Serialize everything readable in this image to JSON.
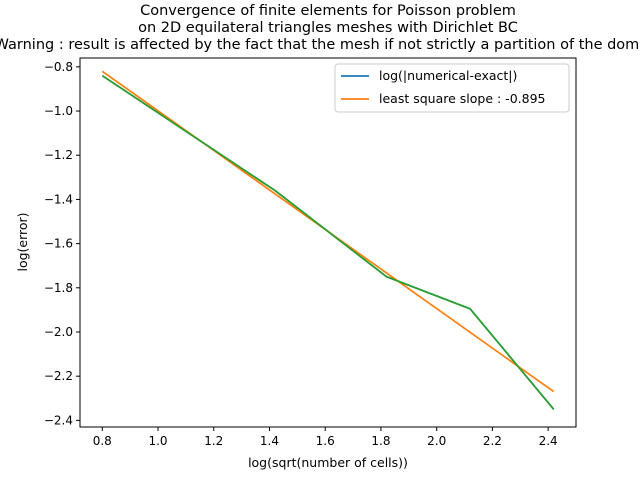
{
  "chart_data": {
    "type": "line",
    "title_lines": [
      "Convergence of finite elements for Poisson problem",
      "on 2D equilateral triangles meshes with Dirichlet BC",
      "Warning : result is affected by the fact that the mesh if not strictly a partition of the domain"
    ],
    "xlabel": "log(sqrt(number of cells))",
    "ylabel": "log(error)",
    "xlim": [
      0.72,
      2.5
    ],
    "ylim": [
      -2.43,
      -0.76
    ],
    "xticks": [
      0.8,
      1.0,
      1.2,
      1.4,
      1.6,
      1.8,
      2.0,
      2.2,
      2.4
    ],
    "xtick_labels": [
      "0.8",
      "1.0",
      "1.2",
      "1.4",
      "1.6",
      "1.8",
      "2.0",
      "2.2",
      "2.4"
    ],
    "yticks": [
      -0.8,
      -1.0,
      -1.2,
      -1.4,
      -1.6,
      -1.8,
      -2.0,
      -2.2,
      -2.4
    ],
    "ytick_labels": [
      "−0.8",
      "−1.0",
      "−1.2",
      "−1.4",
      "−1.6",
      "−1.8",
      "−2.0",
      "−2.2",
      "−2.4"
    ],
    "grid": false,
    "legend_position": "top-right",
    "series": [
      {
        "name": "log(|numerical-exact|)",
        "color": "#1f77b4",
        "x": [
          0.8,
          1.42,
          1.82,
          2.12,
          2.42
        ],
        "y": [
          -0.84,
          -1.36,
          -1.75,
          -1.895,
          -2.35
        ]
      },
      {
        "name": "least square slope : -0.895",
        "color": "#ff7f0e",
        "x": [
          0.8,
          2.42
        ],
        "y": [
          -0.82,
          -2.27
        ]
      },
      {
        "name": "",
        "color": "#2ca02c",
        "x": [
          0.8,
          1.42,
          1.82,
          2.12,
          2.42
        ],
        "y": [
          -0.84,
          -1.36,
          -1.75,
          -1.895,
          -2.35
        ]
      }
    ]
  }
}
